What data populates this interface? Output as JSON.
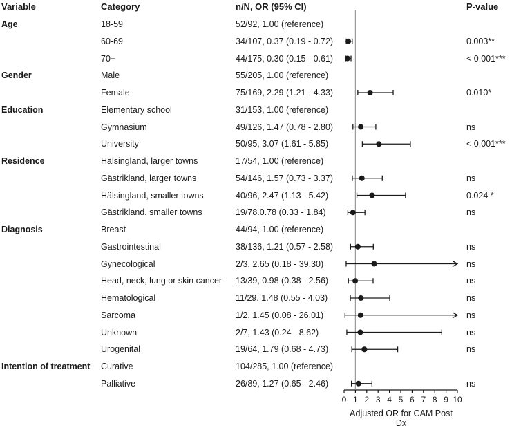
{
  "headers": {
    "variable": "Variable",
    "category": "Category",
    "or": "n/N, OR (95% CI)",
    "p": "P-value"
  },
  "rows": [
    {
      "variable": "Age",
      "category": "18-59",
      "or_text": "52/92, 1.00 (reference)",
      "p": "",
      "or": null,
      "lo": null,
      "hi": null
    },
    {
      "variable": "",
      "category": "60-69",
      "or_text": "34/107, 0.37 (0.19 - 0.72)",
      "p": "0.003**",
      "or": 0.37,
      "lo": 0.19,
      "hi": 0.72
    },
    {
      "variable": "",
      "category": "70+",
      "or_text": "44/175, 0.30 (0.15 - 0.61)",
      "p": "< 0.001***",
      "or": 0.3,
      "lo": 0.15,
      "hi": 0.61
    },
    {
      "variable": "Gender",
      "category": "Male",
      "or_text": "55/205, 1.00 (reference)",
      "p": "",
      "or": null,
      "lo": null,
      "hi": null
    },
    {
      "variable": "",
      "category": "Female",
      "or_text": "75/169, 2.29 (1.21 - 4.33)",
      "p": "0.010*",
      "or": 2.29,
      "lo": 1.21,
      "hi": 4.33
    },
    {
      "variable": "Education",
      "category": "Elementary school",
      "or_text": "31/153, 1.00 (reference)",
      "p": "",
      "or": null,
      "lo": null,
      "hi": null
    },
    {
      "variable": "",
      "category": "Gymnasium",
      "or_text": "49/126, 1.47 (0.78 - 2.80)",
      "p": "ns",
      "or": 1.47,
      "lo": 0.78,
      "hi": 2.8
    },
    {
      "variable": "",
      "category": "University",
      "or_text": "50/95, 3.07 (1.61 - 5.85)",
      "p": "< 0.001***",
      "or": 3.07,
      "lo": 1.61,
      "hi": 5.85
    },
    {
      "variable": "Residence",
      "category": "Hälsingland, larger towns",
      "or_text": "17/54, 1.00 (reference)",
      "p": "",
      "or": null,
      "lo": null,
      "hi": null
    },
    {
      "variable": "",
      "category": "Gästrikland, larger towns",
      "or_text": "54/146, 1.57 (0.73 - 3.37)",
      "p": "ns",
      "or": 1.57,
      "lo": 0.73,
      "hi": 3.37
    },
    {
      "variable": "",
      "category": "Hälsingland, smaller towns",
      "or_text": "40/96, 2.47 (1.13 - 5.42)",
      "p": "0.024 *",
      "or": 2.47,
      "lo": 1.13,
      "hi": 5.42
    },
    {
      "variable": "",
      "category": "Gästrikland. smaller towns",
      "or_text": "19/78.0.78 (0.33 - 1.84)",
      "p": "ns",
      "or": 0.78,
      "lo": 0.33,
      "hi": 1.84
    },
    {
      "variable": "Diagnosis",
      "category": "Breast",
      "or_text": "44/94, 1.00 (reference)",
      "p": "",
      "or": null,
      "lo": null,
      "hi": null
    },
    {
      "variable": "",
      "category": "Gastrointestinal",
      "or_text": "38/136, 1.21 (0.57 - 2.58)",
      "p": "ns",
      "or": 1.21,
      "lo": 0.57,
      "hi": 2.58
    },
    {
      "variable": "",
      "category": "Gynecological",
      "or_text": "2/3, 2.65 (0.18 - 39.30)",
      "p": "ns",
      "or": 2.65,
      "lo": 0.18,
      "hi": 39.3
    },
    {
      "variable": "",
      "category": "Head, neck, lung or skin cancer",
      "or_text": "13/39, 0.98 (0.38 - 2.56)",
      "p": "ns",
      "or": 0.98,
      "lo": 0.38,
      "hi": 2.56
    },
    {
      "variable": "",
      "category": "Hematological",
      "or_text": "11/29. 1.48 (0.55 - 4.03)",
      "p": "ns",
      "or": 1.48,
      "lo": 0.55,
      "hi": 4.03
    },
    {
      "variable": "",
      "category": "Sarcoma",
      "or_text": "1/2, 1.45 (0.08 - 26.01)",
      "p": "ns",
      "or": 1.45,
      "lo": 0.08,
      "hi": 26.01
    },
    {
      "variable": "",
      "category": "Unknown",
      "or_text": "2/7, 1.43 (0.24 - 8.62)",
      "p": "ns",
      "or": 1.43,
      "lo": 0.24,
      "hi": 8.62
    },
    {
      "variable": "",
      "category": "Urogenital",
      "or_text": "19/64, 1.79 (0.68 - 4.73)",
      "p": "ns",
      "or": 1.79,
      "lo": 0.68,
      "hi": 4.73
    },
    {
      "variable": "Intention of treatment",
      "category": "Curative",
      "or_text": "104/285, 1.00 (reference)",
      "p": "",
      "or": null,
      "lo": null,
      "hi": null
    },
    {
      "variable": "",
      "category": "Palliative",
      "or_text": "26/89, 1.27 (0.65 - 2.46)",
      "p": "ns",
      "or": 1.27,
      "lo": 0.65,
      "hi": 2.46
    }
  ],
  "chart_data": {
    "type": "forest",
    "x_label": "Adjusted OR for CAM Post Dx",
    "xlim": [
      0,
      10
    ],
    "x_ticks": [
      0,
      1,
      2,
      3,
      4,
      5,
      6,
      7,
      8,
      9,
      10
    ],
    "reference_line": 1,
    "series": [
      {
        "name": "60-69",
        "or": 0.37,
        "lo": 0.19,
        "hi": 0.72
      },
      {
        "name": "70+",
        "or": 0.3,
        "lo": 0.15,
        "hi": 0.61
      },
      {
        "name": "Female",
        "or": 2.29,
        "lo": 1.21,
        "hi": 4.33
      },
      {
        "name": "Gymnasium",
        "or": 1.47,
        "lo": 0.78,
        "hi": 2.8
      },
      {
        "name": "University",
        "or": 3.07,
        "lo": 1.61,
        "hi": 5.85
      },
      {
        "name": "Gästrikland, larger towns",
        "or": 1.57,
        "lo": 0.73,
        "hi": 3.37
      },
      {
        "name": "Hälsingland, smaller towns",
        "or": 2.47,
        "lo": 1.13,
        "hi": 5.42
      },
      {
        "name": "Gästrikland. smaller towns",
        "or": 0.78,
        "lo": 0.33,
        "hi": 1.84
      },
      {
        "name": "Gastrointestinal",
        "or": 1.21,
        "lo": 0.57,
        "hi": 2.58
      },
      {
        "name": "Gynecological",
        "or": 2.65,
        "lo": 0.18,
        "hi": 39.3
      },
      {
        "name": "Head, neck, lung or skin cancer",
        "or": 0.98,
        "lo": 0.38,
        "hi": 2.56
      },
      {
        "name": "Hematological",
        "or": 1.48,
        "lo": 0.55,
        "hi": 4.03
      },
      {
        "name": "Sarcoma",
        "or": 1.45,
        "lo": 0.08,
        "hi": 26.01
      },
      {
        "name": "Unknown",
        "or": 1.43,
        "lo": 0.24,
        "hi": 8.62
      },
      {
        "name": "Urogenital",
        "or": 1.79,
        "lo": 0.68,
        "hi": 4.73
      },
      {
        "name": "Palliative",
        "or": 1.27,
        "lo": 0.65,
        "hi": 2.46
      }
    ]
  }
}
